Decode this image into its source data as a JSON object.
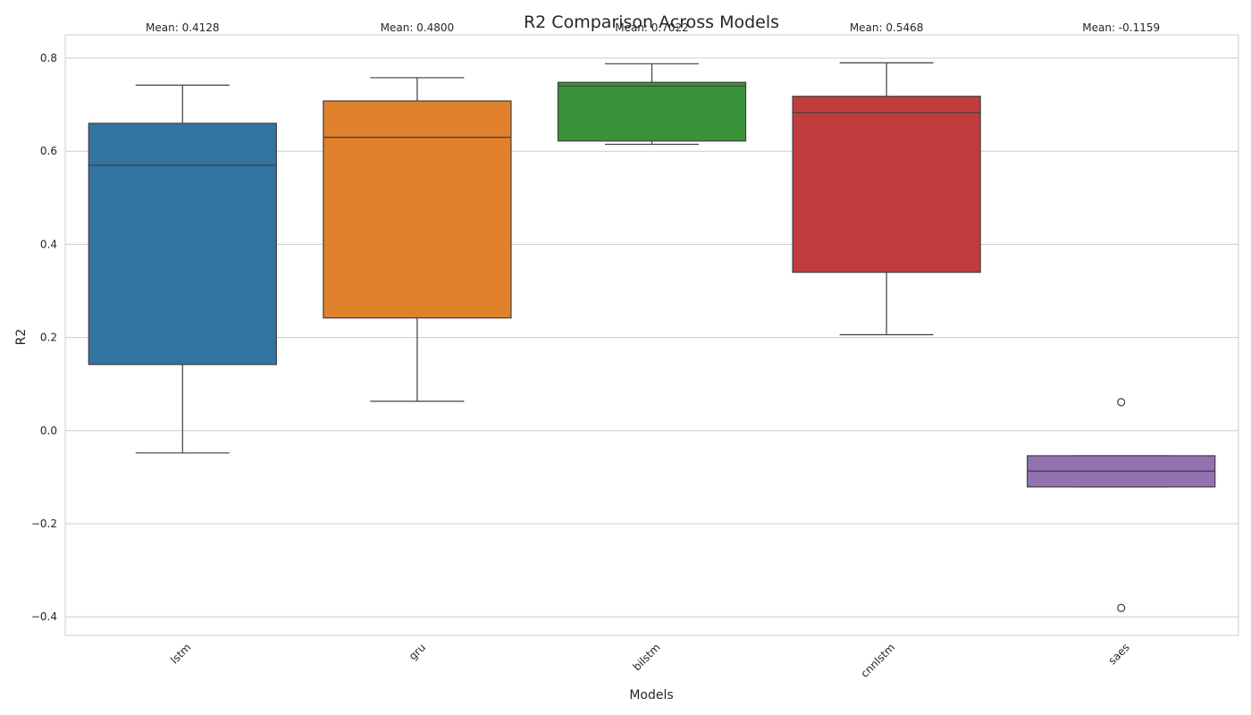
{
  "chart_data": {
    "type": "box",
    "title": "R2 Comparison Across Models",
    "xlabel": "Models",
    "ylabel": "R2",
    "ylim": [
      -0.44,
      0.85
    ],
    "yticks": [
      0.8,
      0.6,
      0.4,
      0.2,
      0.0,
      -0.2,
      -0.4
    ],
    "ytick_labels": [
      "0.8",
      "0.6",
      "0.4",
      "0.2",
      "0.0",
      "−0.2",
      "−0.4"
    ],
    "grid": true,
    "categories": [
      "lstm",
      "gru",
      "bilstm",
      "cnnlstm",
      "saes"
    ],
    "colors": [
      "#3274a1",
      "#e1812c",
      "#3a923a",
      "#c03d3e",
      "#9372b2"
    ],
    "boxes": [
      {
        "name": "lstm",
        "whisker_low": -0.048,
        "q1": 0.142,
        "median": 0.57,
        "q3": 0.66,
        "whisker_high": 0.742,
        "fliers": []
      },
      {
        "name": "gru",
        "whisker_low": 0.063,
        "q1": 0.242,
        "median": 0.63,
        "q3": 0.708,
        "whisker_high": 0.758,
        "fliers": []
      },
      {
        "name": "bilstm",
        "whisker_low": 0.615,
        "q1": 0.622,
        "median": 0.74,
        "q3": 0.748,
        "whisker_high": 0.788,
        "fliers": []
      },
      {
        "name": "cnnlstm",
        "whisker_low": 0.206,
        "q1": 0.34,
        "median": 0.683,
        "q3": 0.718,
        "whisker_high": 0.79,
        "fliers": []
      },
      {
        "name": "saes",
        "whisker_low": -0.121,
        "q1": -0.121,
        "median": -0.087,
        "q3": -0.054,
        "whisker_high": -0.054,
        "fliers": [
          0.061,
          -0.381
        ]
      }
    ],
    "mean_labels": [
      "Mean: 0.4128",
      "Mean: 0.4800",
      "Mean: 0.7022",
      "Mean: 0.5468",
      "Mean: -0.1159"
    ]
  }
}
